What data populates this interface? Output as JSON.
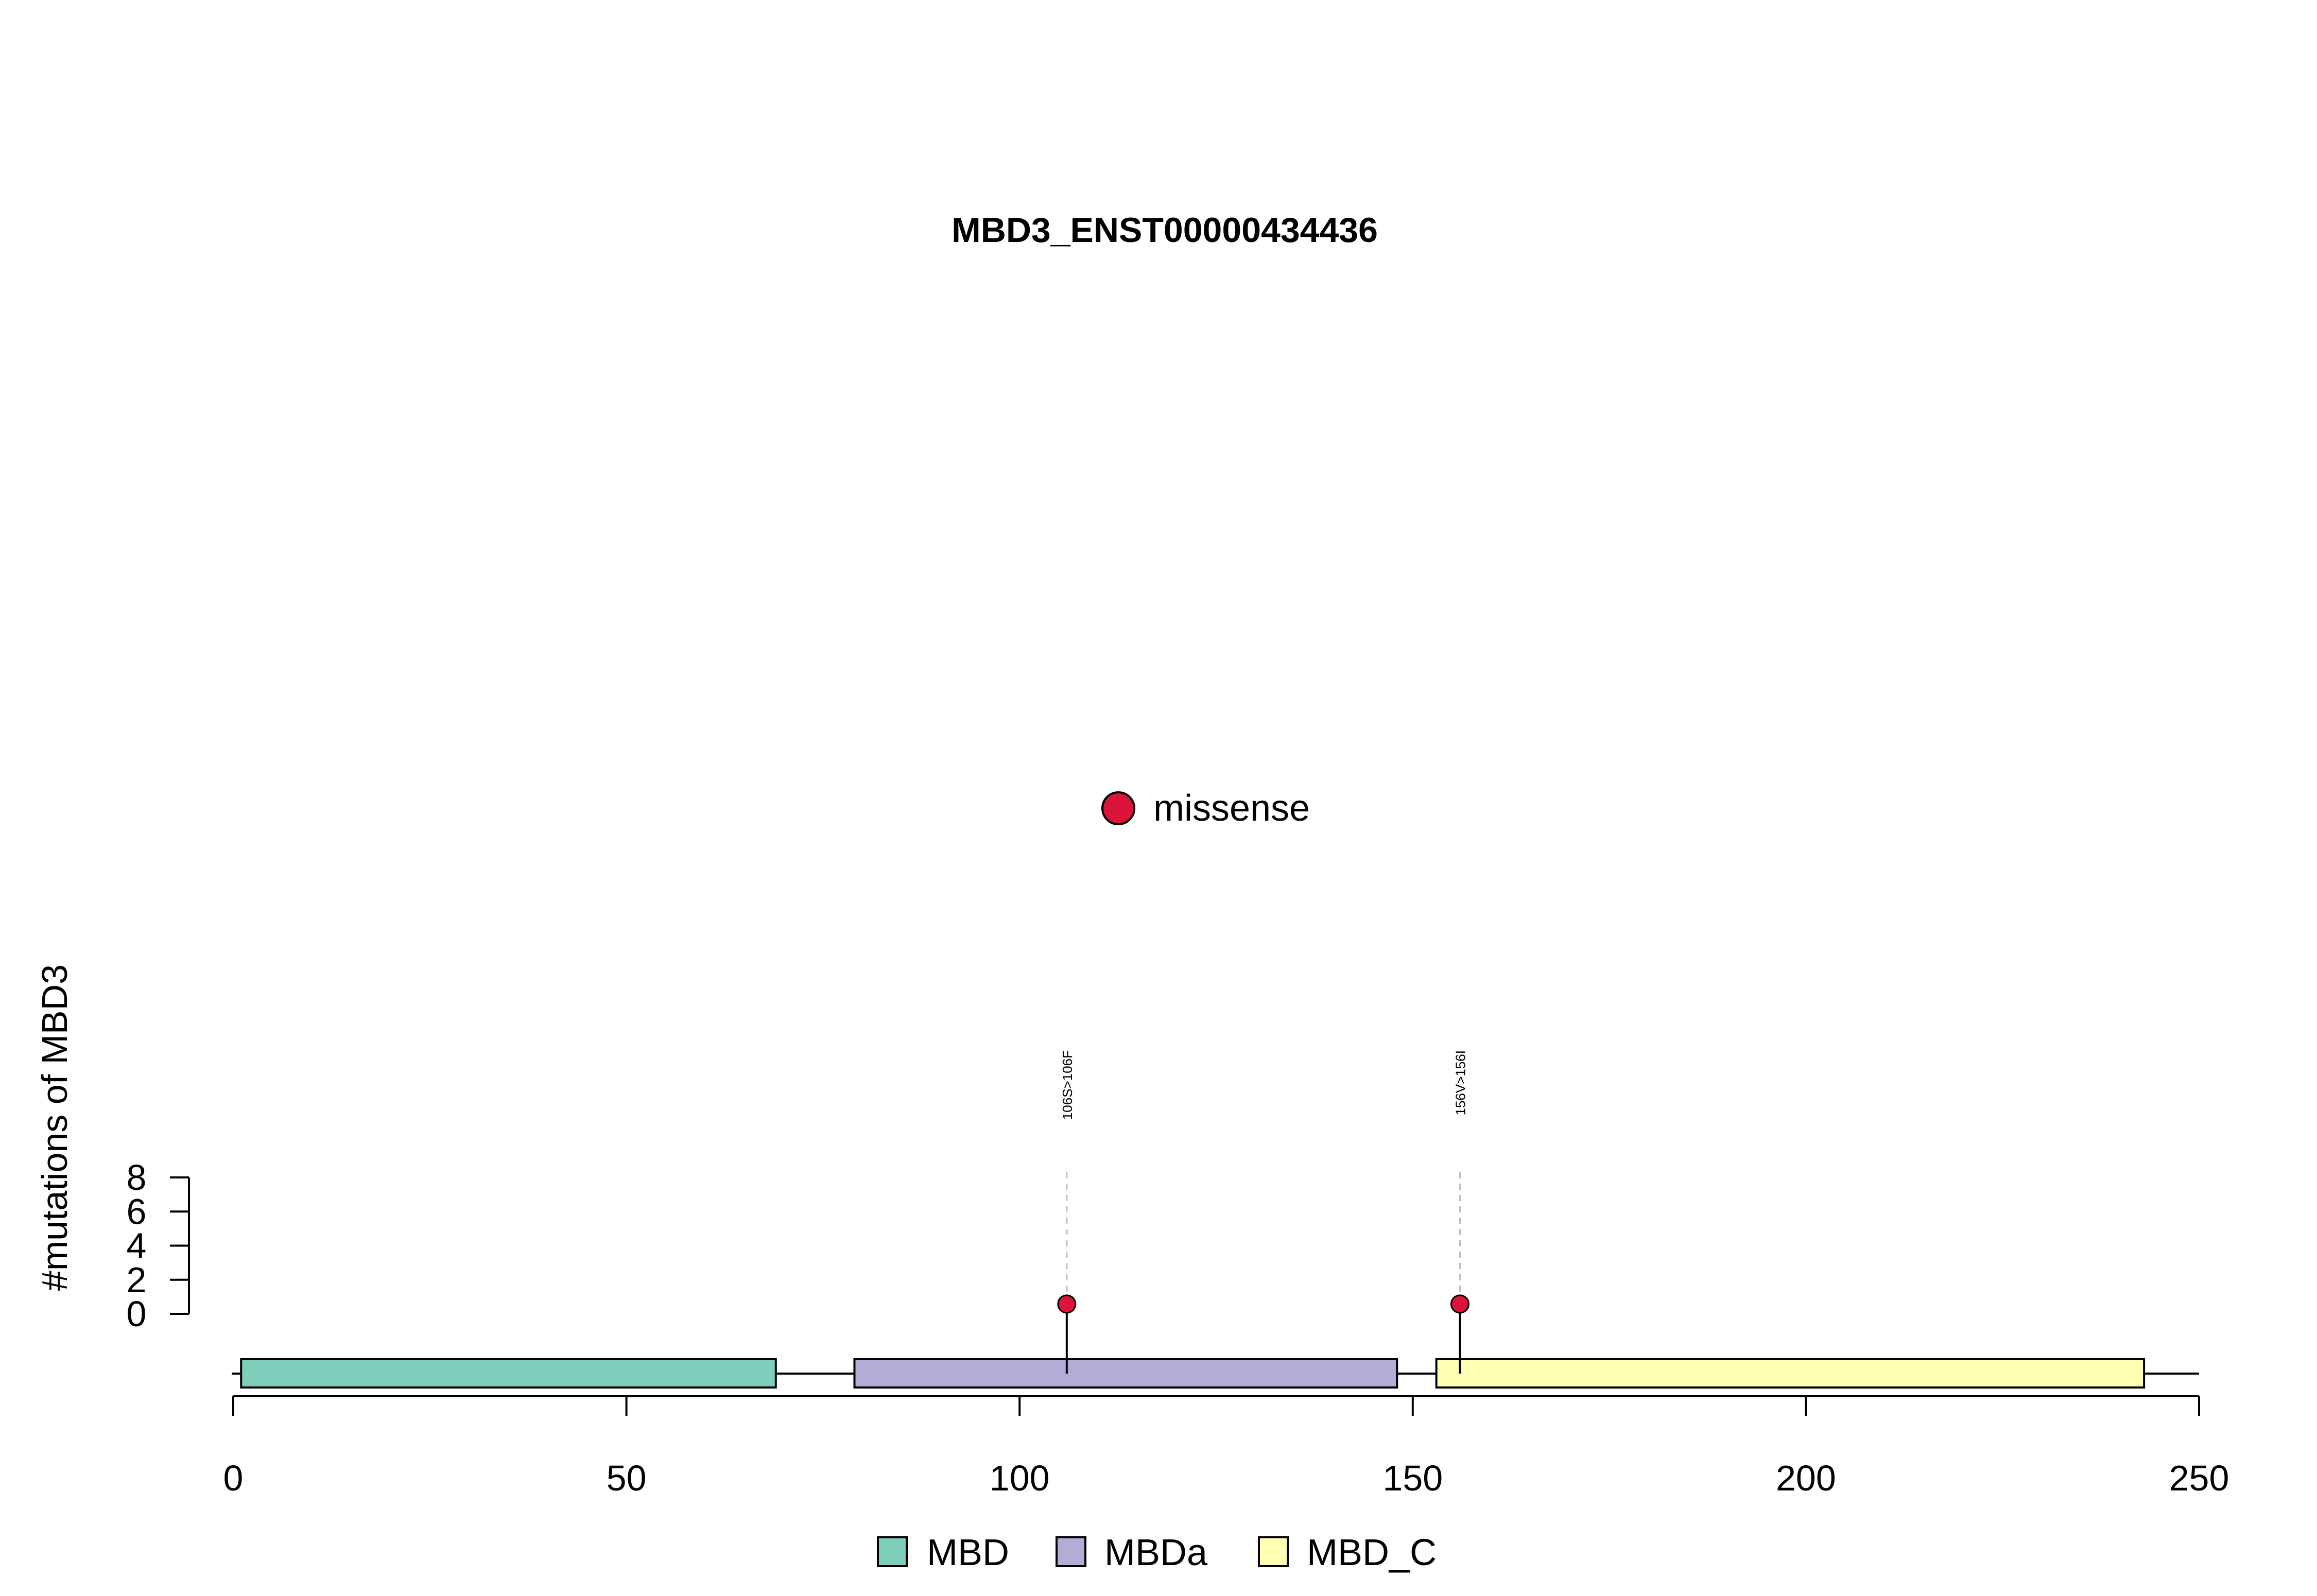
{
  "chart_data": {
    "type": "lollipop",
    "title": "MBD3_ENST00000434436",
    "ylabel": "#mutations of MBD3",
    "xlabel": "",
    "xlim": [
      0,
      250
    ],
    "x_ticks": [
      0,
      50,
      100,
      150,
      200,
      250
    ],
    "x_tick_labels": [
      "0",
      "50",
      "100",
      "150",
      "200",
      "250"
    ],
    "ylim": [
      0,
      8
    ],
    "y_ticks": [
      0,
      2,
      4,
      6,
      8
    ],
    "y_tick_labels": [
      "0",
      "2",
      "4",
      "6",
      "8"
    ],
    "protein_length": 250,
    "domains": [
      {
        "name": "MBD",
        "start": 1,
        "end": 69,
        "color": "#7FCDBB"
      },
      {
        "name": "MBDa",
        "start": 79,
        "end": 148,
        "color": "#B3ACD6"
      },
      {
        "name": "MBD_C",
        "start": 153,
        "end": 243,
        "color": "#FFFFB3"
      }
    ],
    "mutations": [
      {
        "position": 106,
        "count": 1,
        "type": "missense",
        "label": "106S>106F"
      },
      {
        "position": 156,
        "count": 1,
        "type": "missense",
        "label": "156V>156I"
      }
    ],
    "mutation_legend": [
      {
        "name": "missense",
        "color": "#DC143C"
      }
    ],
    "domain_legend": [
      {
        "name": "MBD",
        "color": "#7FCDBB"
      },
      {
        "name": "MBDa",
        "color": "#B3ACD6"
      },
      {
        "name": "MBD_C",
        "color": "#FFFFB3"
      }
    ],
    "grid": false
  }
}
